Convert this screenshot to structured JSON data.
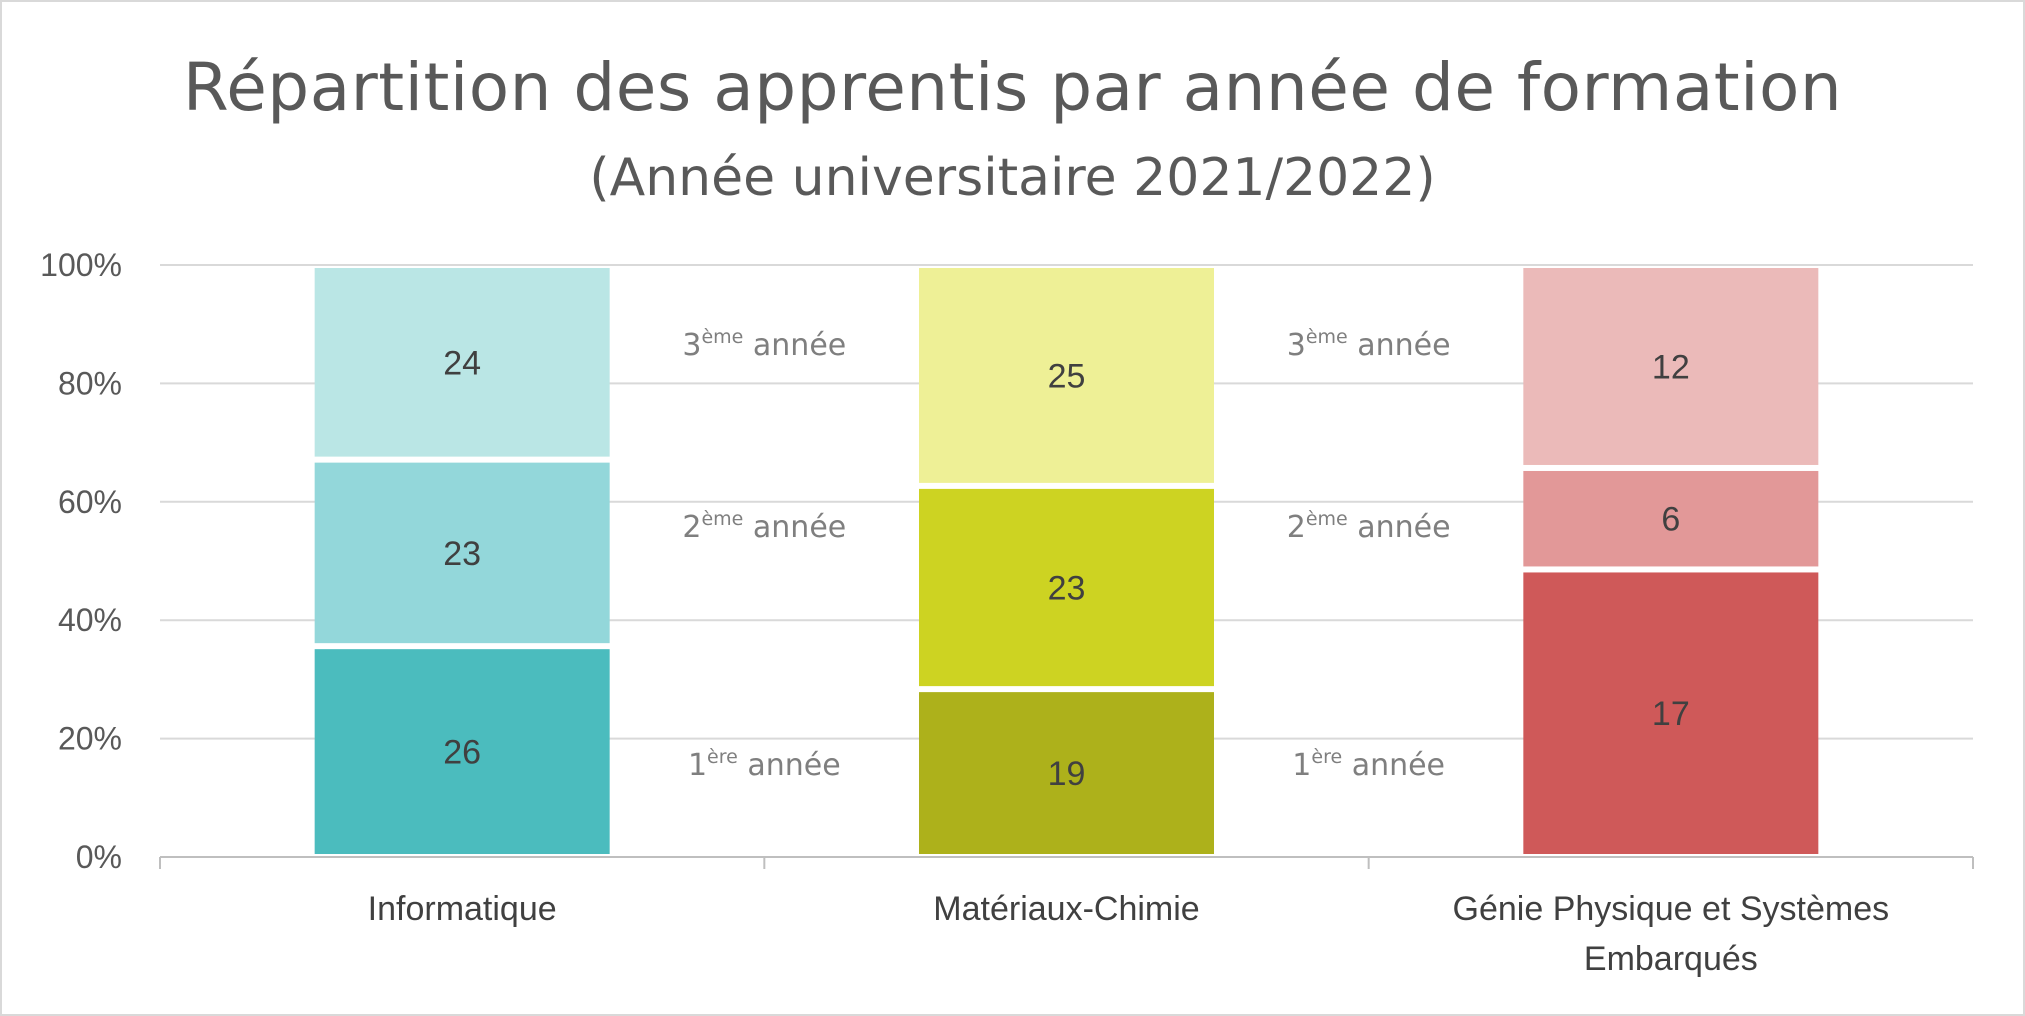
{
  "chart_data": {
    "type": "bar",
    "stacked": "percent",
    "title": "Répartition des apprentis par année de formation",
    "subtitle": "(Année universitaire 2021/2022)",
    "categories": [
      "Informatique",
      "Matériaux-Chimie",
      "Génie Physique et Systèmes Embarqués"
    ],
    "series": [
      {
        "name": "1ère année",
        "values": [
          26,
          19,
          17
        ]
      },
      {
        "name": "2ème année",
        "values": [
          23,
          23,
          6
        ]
      },
      {
        "name": "3ème année",
        "values": [
          24,
          25,
          12
        ]
      }
    ],
    "series_labels": [
      {
        "num": "1",
        "sup": "ère",
        "rest": " année"
      },
      {
        "num": "2",
        "sup": "ème",
        "rest": " année"
      },
      {
        "num": "3",
        "sup": "ème",
        "rest": " année"
      }
    ],
    "colors": [
      [
        "#4bbcbe",
        "#93d7da",
        "#bae6e5"
      ],
      [
        "#adb11b",
        "#cdd322",
        "#eef096"
      ],
      [
        "#cf5959",
        "#e29898",
        "#ebbab9"
      ]
    ],
    "yticks": [
      "0%",
      "20%",
      "40%",
      "60%",
      "80%",
      "100%"
    ],
    "ylim": [
      0,
      100
    ],
    "gridlines": true,
    "legend": "labels between bars"
  }
}
